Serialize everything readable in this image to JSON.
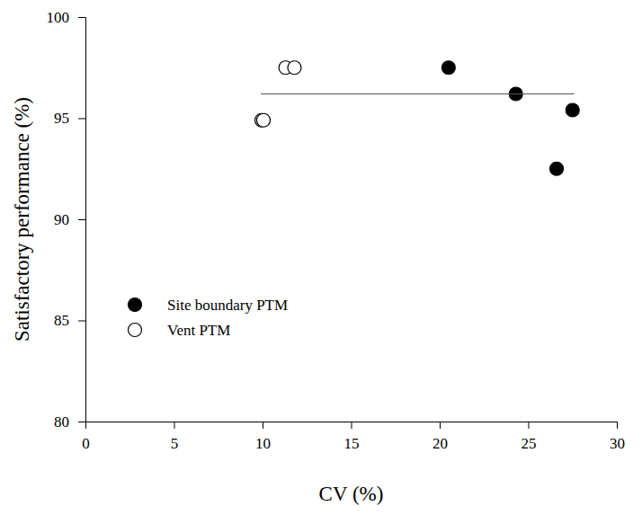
{
  "chart_data": {
    "type": "scatter",
    "xlabel": "CV (%)",
    "ylabel": "Satisfactory performance (%)",
    "xlim": [
      0,
      30
    ],
    "xticks": [
      0,
      5,
      10,
      15,
      20,
      25,
      30
    ],
    "ylim": [
      80,
      100
    ],
    "yticks": [
      80,
      85,
      90,
      95,
      100
    ],
    "legend": "lower left",
    "series": [
      {
        "name": "Site boundary PTM",
        "color": "#000000",
        "marker": "circle",
        "x": [
          20.5,
          24.3,
          26.6,
          27.5
        ],
        "values": [
          97.5,
          96.2,
          92.5,
          95.4
        ]
      },
      {
        "name": "Vent PTM",
        "color": "#000000",
        "marker": "circle-open",
        "x": [
          9.95,
          10.05,
          11.3,
          11.8
        ],
        "values": [
          94.9,
          94.9,
          97.5,
          97.5
        ]
      },
      {
        "type": "line",
        "color": "#555555",
        "line_style": "solid",
        "x": [
          9.9,
          27.6
        ],
        "values": [
          96.2,
          96.2
        ]
      }
    ]
  }
}
